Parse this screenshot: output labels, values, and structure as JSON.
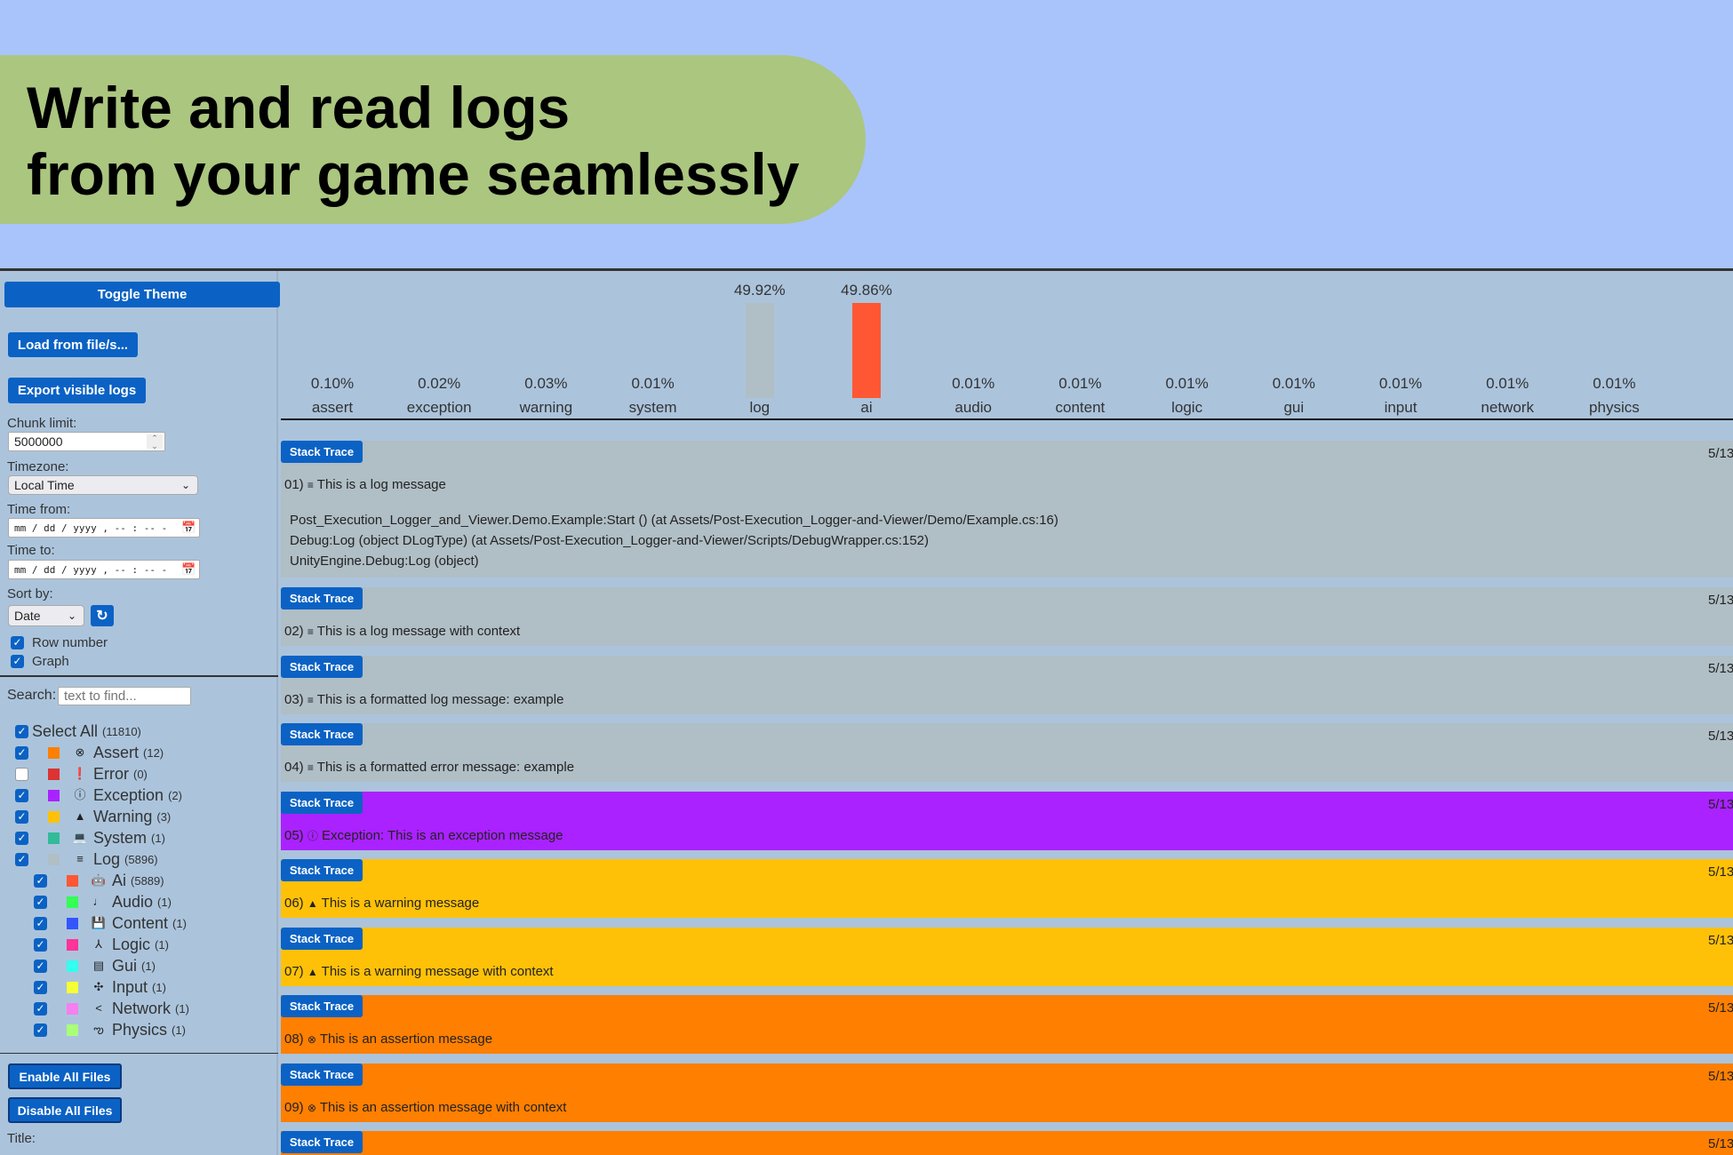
{
  "hero": {
    "title": "Write and read logs\nfrom your game seamlessly"
  },
  "sidebar": {
    "toggle_theme": "Toggle Theme",
    "load": "Load from file/s...",
    "export": "Export visible logs",
    "chunk_label": "Chunk limit:",
    "chunk_value": "5000000",
    "timezone_label": "Timezone:",
    "timezone_value": "Local Time",
    "time_from_label": "Time from:",
    "time_to_label": "Time to:",
    "datetime_placeholder": "mm / dd / yyyy ,  -- : --  -",
    "sort_label": "Sort by:",
    "sort_value": "Date",
    "row_number": "Row number",
    "graph": "Graph",
    "search_label": "Search:",
    "search_placeholder": "text to find...",
    "select_all": {
      "label": "Select All",
      "count": "(11810)",
      "checked": true
    },
    "filters": [
      {
        "label": "Assert",
        "count": "(12)",
        "checked": true,
        "color": "#ff7f00",
        "icon": "circle-x-icon",
        "glyph": "⊗",
        "sub": false
      },
      {
        "label": "Error",
        "count": "(0)",
        "checked": false,
        "color": "#dd3333",
        "icon": "error-icon",
        "glyph": "❗",
        "sub": false
      },
      {
        "label": "Exception",
        "count": "(2)",
        "checked": true,
        "color": "#aa22ff",
        "icon": "exclamation-circle-icon",
        "glyph": "ⓘ",
        "sub": false
      },
      {
        "label": "Warning",
        "count": "(3)",
        "checked": true,
        "color": "#ffc107",
        "icon": "warning-icon",
        "glyph": "▲",
        "sub": false
      },
      {
        "label": "System",
        "count": "(1)",
        "checked": true,
        "color": "#33bb99",
        "icon": "laptop-icon",
        "glyph": "💻",
        "sub": false
      },
      {
        "label": "Log",
        "count": "(5896)",
        "checked": true,
        "color": "#b0bec5",
        "icon": "list-icon",
        "glyph": "≡",
        "sub": false
      },
      {
        "label": "Ai",
        "count": "(5889)",
        "checked": true,
        "color": "#ff5733",
        "icon": "android-icon",
        "glyph": "🤖",
        "sub": true
      },
      {
        "label": "Audio",
        "count": "(1)",
        "checked": true,
        "color": "#33ff55",
        "icon": "music-note-icon",
        "glyph": "♩",
        "sub": true
      },
      {
        "label": "Content",
        "count": "(1)",
        "checked": true,
        "color": "#3355ff",
        "icon": "save-icon",
        "glyph": "💾",
        "sub": true
      },
      {
        "label": "Logic",
        "count": "(1)",
        "checked": true,
        "color": "#ff3399",
        "icon": "fork-icon",
        "glyph": "⅄",
        "sub": true
      },
      {
        "label": "Gui",
        "count": "(1)",
        "checked": true,
        "color": "#33ffee",
        "icon": "window-icon",
        "glyph": "▤",
        "sub": true
      },
      {
        "label": "Input",
        "count": "(1)",
        "checked": true,
        "color": "#f5ff33",
        "icon": "gamepad-icon",
        "glyph": "✣",
        "sub": true
      },
      {
        "label": "Network",
        "count": "(1)",
        "checked": true,
        "color": "#f57fef",
        "icon": "share-icon",
        "glyph": "<",
        "sub": true
      },
      {
        "label": "Physics",
        "count": "(1)",
        "checked": true,
        "color": "#aaff77",
        "icon": "physics-icon",
        "glyph": "ఌ",
        "sub": true
      }
    ],
    "enable_all": "Enable All Files",
    "disable_all": "Disable All Files",
    "title_label": "Title:"
  },
  "chart_data": {
    "type": "bar",
    "categories": [
      "assert",
      "exception",
      "warning",
      "system",
      "log",
      "ai",
      "audio",
      "content",
      "logic",
      "gui",
      "input",
      "network",
      "physics"
    ],
    "values": [
      0.1,
      0.02,
      0.03,
      0.01,
      49.92,
      49.86,
      0.01,
      0.01,
      0.01,
      0.01,
      0.01,
      0.01,
      0.01
    ],
    "labels": [
      "0.10%",
      "0.02%",
      "0.03%",
      "0.01%",
      "49.92%",
      "49.86%",
      "0.01%",
      "0.01%",
      "0.01%",
      "0.01%",
      "0.01%",
      "0.01%",
      "0.01%"
    ],
    "colors": [
      "#ff7f00",
      "#aa22ff",
      "#ffc107",
      "#33bb99",
      "#b0bec5",
      "#ff5733",
      "#33ff55",
      "#3355ff",
      "#ff3399",
      "#33ffee",
      "#f5ff33",
      "#f57fef",
      "#aaff77"
    ]
  },
  "logs": {
    "stack_trace_label": "Stack Trace",
    "entries": [
      {
        "num": "01)",
        "glyph": "≡",
        "icon": "list-icon",
        "text": "This is a log message",
        "time": "5/13",
        "color": "#b0bec5",
        "trace": [
          "Post_Execution_Logger_and_Viewer.Demo.Example:Start () (at Assets/Post-Execution_Logger-and-Viewer/Demo/Example.cs:16)",
          "Debug:Log (object DLogType) (at Assets/Post-Execution_Logger-and-Viewer/Scripts/DebugWrapper.cs:152)",
          "UnityEngine.Debug:Log (object)"
        ]
      },
      {
        "num": "02)",
        "glyph": "≡",
        "icon": "list-icon",
        "text": "This is a log message with context",
        "time": "5/13",
        "color": "#b0bec5"
      },
      {
        "num": "03)",
        "glyph": "≡",
        "icon": "list-icon",
        "text": "This is a formatted log message: example",
        "time": "5/13",
        "color": "#b0bec5"
      },
      {
        "num": "04)",
        "glyph": "≡",
        "icon": "list-icon",
        "text": "This is a formatted error message: example",
        "time": "5/13",
        "color": "#b0bec5"
      },
      {
        "num": "05)",
        "glyph": "ⓘ",
        "icon": "exclamation-circle-icon",
        "text": "Exception: This is an exception message",
        "time": "5/13",
        "color": "#aa22ff"
      },
      {
        "num": "06)",
        "glyph": "▲",
        "icon": "warning-icon",
        "text": "This is a warning message",
        "time": "5/13",
        "color": "#ffc107"
      },
      {
        "num": "07)",
        "glyph": "▲",
        "icon": "warning-icon",
        "text": "This is a warning message with context",
        "time": "5/13",
        "color": "#ffc107"
      },
      {
        "num": "08)",
        "glyph": "⊗",
        "icon": "circle-x-icon",
        "text": "This is an assertion message",
        "time": "5/13",
        "color": "#ff7f00"
      },
      {
        "num": "09)",
        "glyph": "⊗",
        "icon": "circle-x-icon",
        "text": "This is an assertion message with context",
        "time": "5/13",
        "color": "#ff7f00"
      },
      {
        "num": "",
        "glyph": "",
        "icon": "",
        "text": "",
        "time": "5/13",
        "color": "#ff7f00"
      }
    ]
  }
}
